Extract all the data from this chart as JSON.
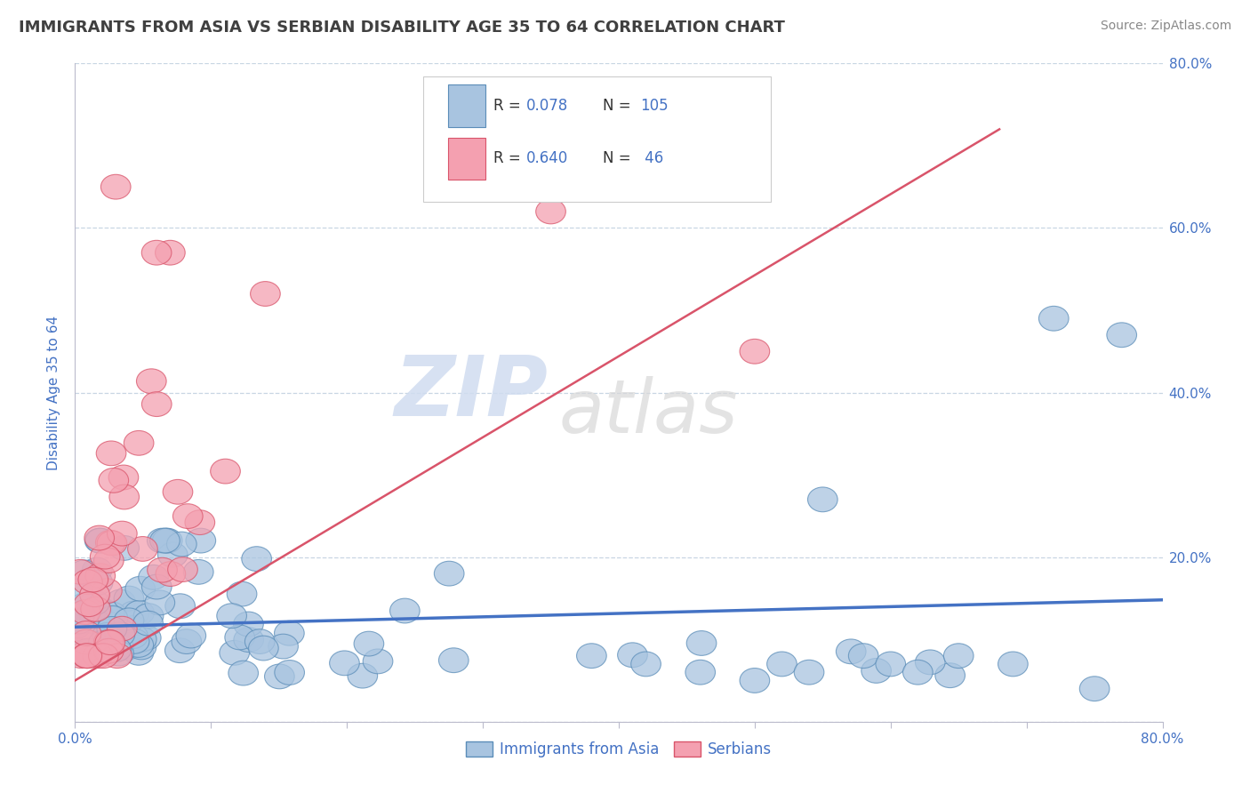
{
  "title": "IMMIGRANTS FROM ASIA VS SERBIAN DISABILITY AGE 35 TO 64 CORRELATION CHART",
  "source": "Source: ZipAtlas.com",
  "ylabel": "Disability Age 35 to 64",
  "xlim": [
    0.0,
    0.8
  ],
  "ylim": [
    0.0,
    0.8
  ],
  "xtick_labels": [
    "0.0%",
    "",
    "",
    "",
    "",
    "",
    "",
    "",
    "80.0%"
  ],
  "ytick_labels_right": [
    "20.0%",
    "40.0%",
    "60.0%",
    "80.0%"
  ],
  "blue_color": "#A8C4E0",
  "blue_edge_color": "#5B8DB8",
  "pink_color": "#F4A0B0",
  "pink_edge_color": "#D9546A",
  "blue_line_color": "#4472C4",
  "pink_line_color": "#D9546A",
  "title_color": "#404040",
  "axis_color": "#4472C4",
  "source_color": "#888888",
  "grid_color": "#BBCCDD",
  "legend_text_color": "#4472C4",
  "legend_border_color": "#CCCCCC",
  "background_color": "#FFFFFF",
  "watermark_zip_color": "#D0DCF0",
  "watermark_atlas_color": "#D8D8D8",
  "blue_trend_x0": 0.0,
  "blue_trend_y0": 0.115,
  "blue_trend_x1": 0.8,
  "blue_trend_y1": 0.148,
  "pink_trend_x0": 0.0,
  "pink_trend_y0": 0.05,
  "pink_trend_x1": 0.68,
  "pink_trend_y1": 0.72
}
